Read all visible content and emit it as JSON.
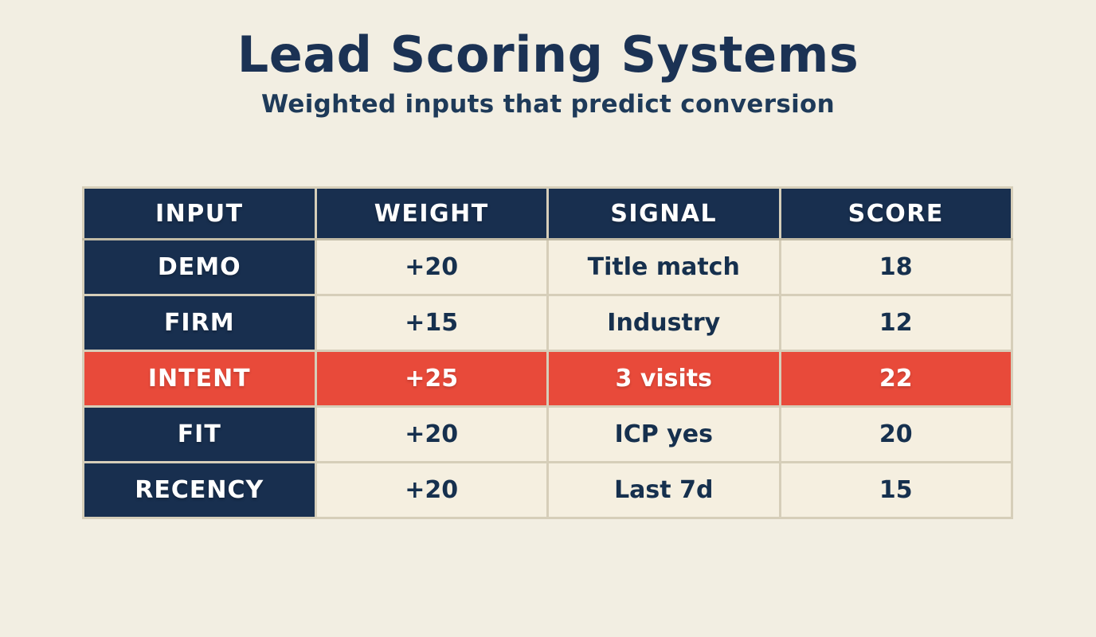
{
  "header": {
    "title": "Lead Scoring Systems",
    "subtitle": "Weighted inputs that predict conversion"
  },
  "table": {
    "columns": [
      "INPUT",
      "WEIGHT",
      "SIGNAL",
      "SCORE"
    ],
    "rows": [
      {
        "input": "DEMO",
        "weight": "+20",
        "signal": "Title match",
        "score": "18",
        "highlight": false
      },
      {
        "input": "FIRM",
        "weight": "+15",
        "signal": "Industry",
        "score": "12",
        "highlight": false
      },
      {
        "input": "INTENT",
        "weight": "+25",
        "signal": "3 visits",
        "score": "22",
        "highlight": true
      },
      {
        "input": "FIT",
        "weight": "+20",
        "signal": "ICP yes",
        "score": "20",
        "highlight": false
      },
      {
        "input": "RECENCY",
        "weight": "+20",
        "signal": "Last 7d",
        "score": "15",
        "highlight": false
      }
    ]
  },
  "colors": {
    "background": "#f2eee2",
    "navy": "#182f4f",
    "highlight_red": "#e84a3a",
    "cell_cream": "#f5efe0",
    "grid_border": "#d6ceb9",
    "title_text": "#1b3254",
    "white_text": "#ffffff"
  },
  "chart_data": {
    "type": "table",
    "title": "Lead Scoring Systems",
    "subtitle": "Weighted inputs that predict conversion",
    "columns": [
      "INPUT",
      "WEIGHT",
      "SIGNAL",
      "SCORE"
    ],
    "rows": [
      [
        "DEMO",
        "+20",
        "Title match",
        18
      ],
      [
        "FIRM",
        "+15",
        "Industry",
        12
      ],
      [
        "INTENT",
        "+25",
        "3 visits",
        22
      ],
      [
        "FIT",
        "+20",
        "ICP yes",
        20
      ],
      [
        "RECENCY",
        "+20",
        "Last 7d",
        15
      ]
    ],
    "highlighted_row": "INTENT",
    "notes": "Row INTENT is highlighted in red; header row and INPUT column have navy background"
  }
}
